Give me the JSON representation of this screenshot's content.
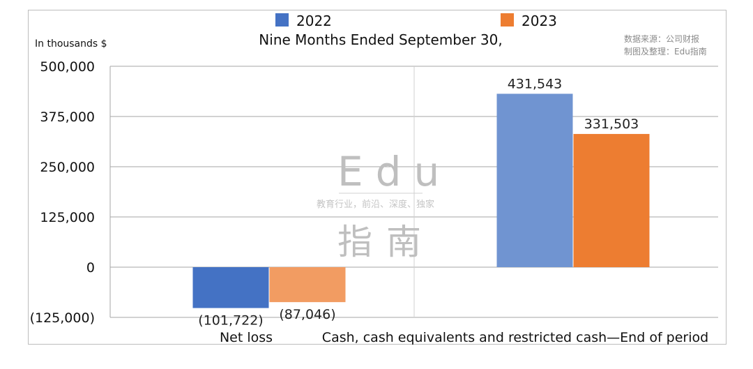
{
  "chart_data": {
    "type": "bar",
    "title": "Nine Months Ended September 30,",
    "ylabel": "In thousands $",
    "categories": [
      "Net loss",
      "Cash, cash equivalents and restricted cash—End of period"
    ],
    "series": [
      {
        "name": "2022",
        "values": [
          -101722,
          431543
        ],
        "labels": [
          "(101,722)",
          "431,543"
        ],
        "colors": [
          "#4472c4",
          "#7094d1"
        ]
      },
      {
        "name": "2023",
        "values": [
          -87046,
          331503
        ],
        "labels": [
          "(87,046)",
          "331,503"
        ],
        "colors": [
          "#f29c62",
          "#ed7d31"
        ]
      }
    ],
    "legend_colors": [
      "#4472c4",
      "#ed7d31"
    ],
    "ylim": [
      -125000,
      500000
    ],
    "yticks": [
      -125000,
      0,
      125000,
      250000,
      375000,
      500000
    ],
    "ytick_labels": [
      "(125,000)",
      "0",
      "125,000",
      "250,000",
      "375,000",
      "500,000"
    ],
    "grid": true,
    "legend": "top"
  },
  "source": {
    "line1": "数据来源：公司财报",
    "line2": "制图及整理：Edu指南"
  },
  "watermark": {
    "brand": "Edu",
    "tagline": "教育行业，前沿、深度、独家",
    "cn": "指南"
  }
}
